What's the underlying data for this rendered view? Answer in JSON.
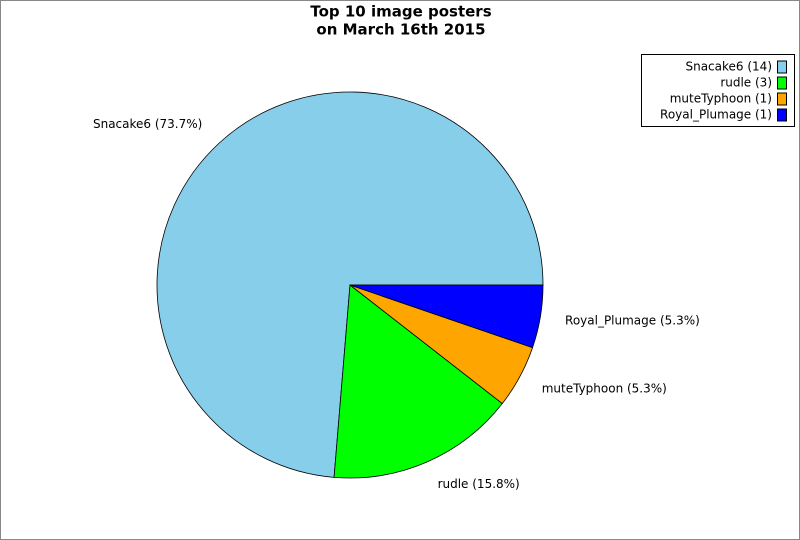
{
  "chart_data": {
    "type": "pie",
    "title": [
      "Top 10 image posters",
      "on March 16th 2015"
    ],
    "categories": [
      "Snacake6",
      "rudle",
      "muteTyphoon",
      "Royal_Plumage"
    ],
    "values": [
      14,
      3,
      1,
      1
    ],
    "legend_labels": [
      "Snacake6 (14)",
      "rudle (3)",
      "muteTyphoon (1)",
      "Royal_Plumage (1)"
    ],
    "slice_labels": [
      "Snacake6 (73.7%)",
      "rudle (15.8%)",
      "muteTyphoon (5.3%)",
      "Royal_Plumage (5.3%)"
    ],
    "colors": [
      "#87ceeb",
      "#00ff00",
      "#ffa500",
      "#0000ff"
    ],
    "legend": "top-right"
  }
}
